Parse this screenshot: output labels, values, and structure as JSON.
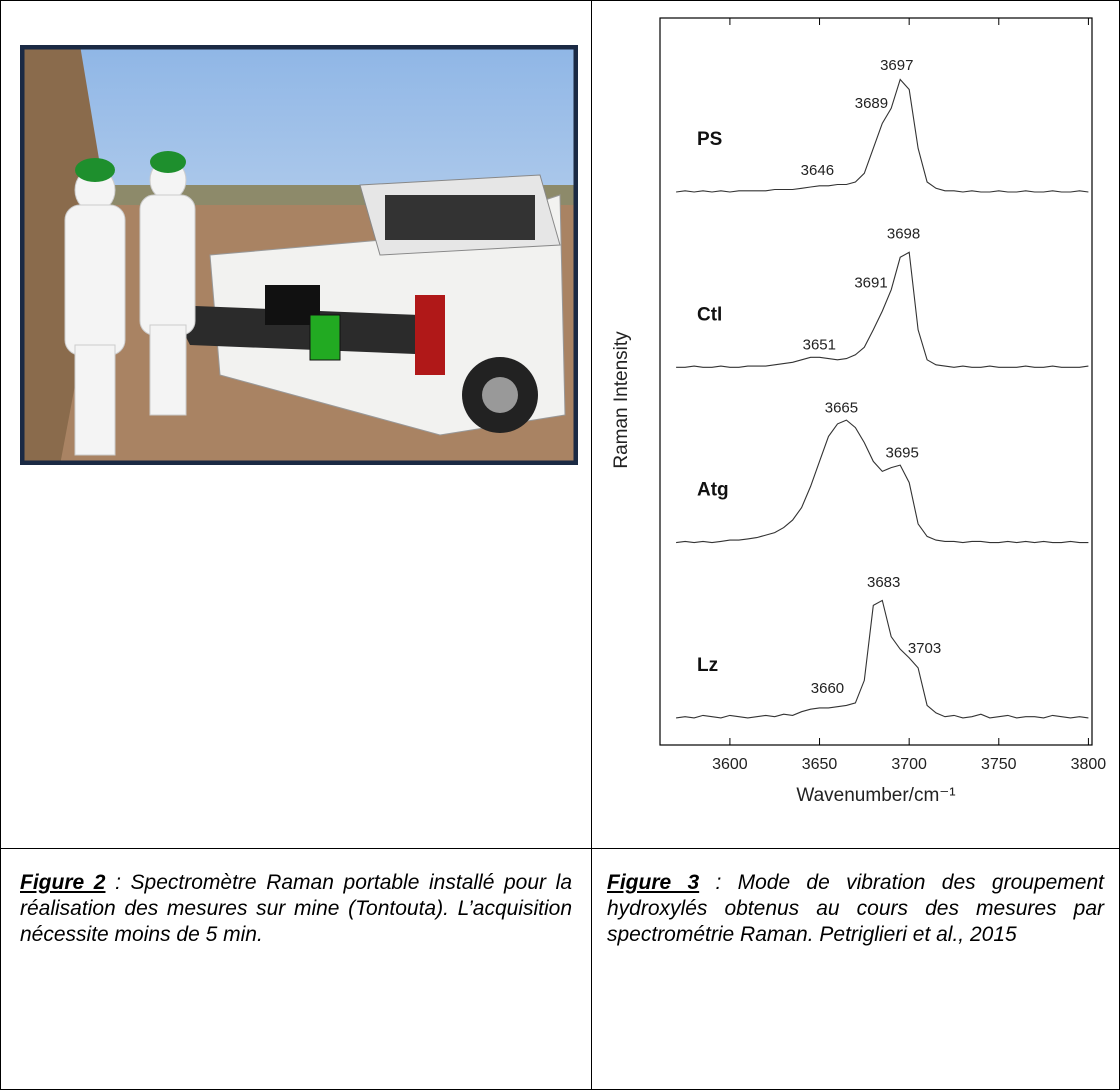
{
  "figures": [
    {
      "label": "Figure 2",
      "caption": ": Spectromètre Raman portable installé pour la réalisation des mesures sur mine (Tontouta). L’acquisition nécessite moins de 5 min."
    },
    {
      "label": "Figure 3",
      "caption": ": Mode de vibration des groupement hydroxylés obtenus au cours des mesures par spectrométrie Raman. Petriglieri et al., 2015"
    }
  ],
  "chart_data": {
    "type": "line",
    "xlabel": "Wavenumber/cm⁻¹",
    "ylabel": "Raman Intensity",
    "x": [
      3570,
      3575,
      3580,
      3585,
      3590,
      3595,
      3600,
      3605,
      3610,
      3615,
      3620,
      3625,
      3630,
      3635,
      3640,
      3645,
      3650,
      3655,
      3660,
      3665,
      3670,
      3675,
      3680,
      3685,
      3690,
      3695,
      3700,
      3705,
      3710,
      3715,
      3720,
      3725,
      3730,
      3735,
      3740,
      3745,
      3750,
      3755,
      3760,
      3765,
      3770,
      3775,
      3780,
      3785,
      3790,
      3795,
      3800
    ],
    "xlim": [
      3561,
      3802
    ],
    "xticks": [
      3600,
      3650,
      3700,
      3750,
      3800
    ],
    "series": [
      {
        "name": "PS",
        "color": "#333333",
        "peaks": [
          3646,
          3689,
          3697
        ],
        "values": [
          0,
          1,
          0,
          1,
          0,
          1,
          0,
          1,
          1,
          1,
          1,
          2,
          2,
          2,
          3,
          4,
          5,
          5,
          6,
          6,
          8,
          15,
          35,
          55,
          67,
          90,
          82,
          35,
          8,
          3,
          1,
          1,
          0,
          1,
          0,
          0,
          1,
          0,
          0,
          1,
          0,
          0,
          1,
          0,
          0,
          1,
          0
        ]
      },
      {
        "name": "Ctl",
        "color": "#333333",
        "peaks": [
          3651,
          3691,
          3698
        ],
        "values": [
          0,
          0,
          1,
          0,
          0,
          1,
          0,
          0,
          1,
          1,
          1,
          2,
          3,
          4,
          6,
          8,
          8,
          7,
          6,
          7,
          10,
          16,
          30,
          45,
          62,
          88,
          92,
          30,
          6,
          2,
          1,
          0,
          1,
          0,
          0,
          1,
          0,
          0,
          0,
          1,
          0,
          0,
          1,
          0,
          0,
          0,
          1
        ]
      },
      {
        "name": "Atg",
        "color": "#333333",
        "peaks": [
          3665,
          3695
        ],
        "values": [
          0,
          1,
          0,
          1,
          0,
          1,
          2,
          2,
          3,
          4,
          6,
          8,
          12,
          18,
          28,
          45,
          65,
          85,
          95,
          98,
          92,
          80,
          65,
          57,
          60,
          62,
          48,
          15,
          5,
          2,
          1,
          1,
          0,
          1,
          1,
          0,
          0,
          1,
          0,
          1,
          0,
          1,
          0,
          0,
          1,
          0,
          0
        ]
      },
      {
        "name": "Lz",
        "color": "#333333",
        "peaks": [
          3660,
          3683,
          3703
        ],
        "values": [
          0,
          1,
          0,
          2,
          1,
          0,
          2,
          1,
          0,
          1,
          2,
          1,
          3,
          2,
          5,
          7,
          8,
          8,
          9,
          10,
          12,
          30,
          90,
          94,
          65,
          55,
          48,
          40,
          10,
          4,
          1,
          2,
          0,
          1,
          3,
          0,
          1,
          2,
          0,
          1,
          1,
          0,
          2,
          1,
          0,
          1,
          0
        ]
      }
    ]
  }
}
